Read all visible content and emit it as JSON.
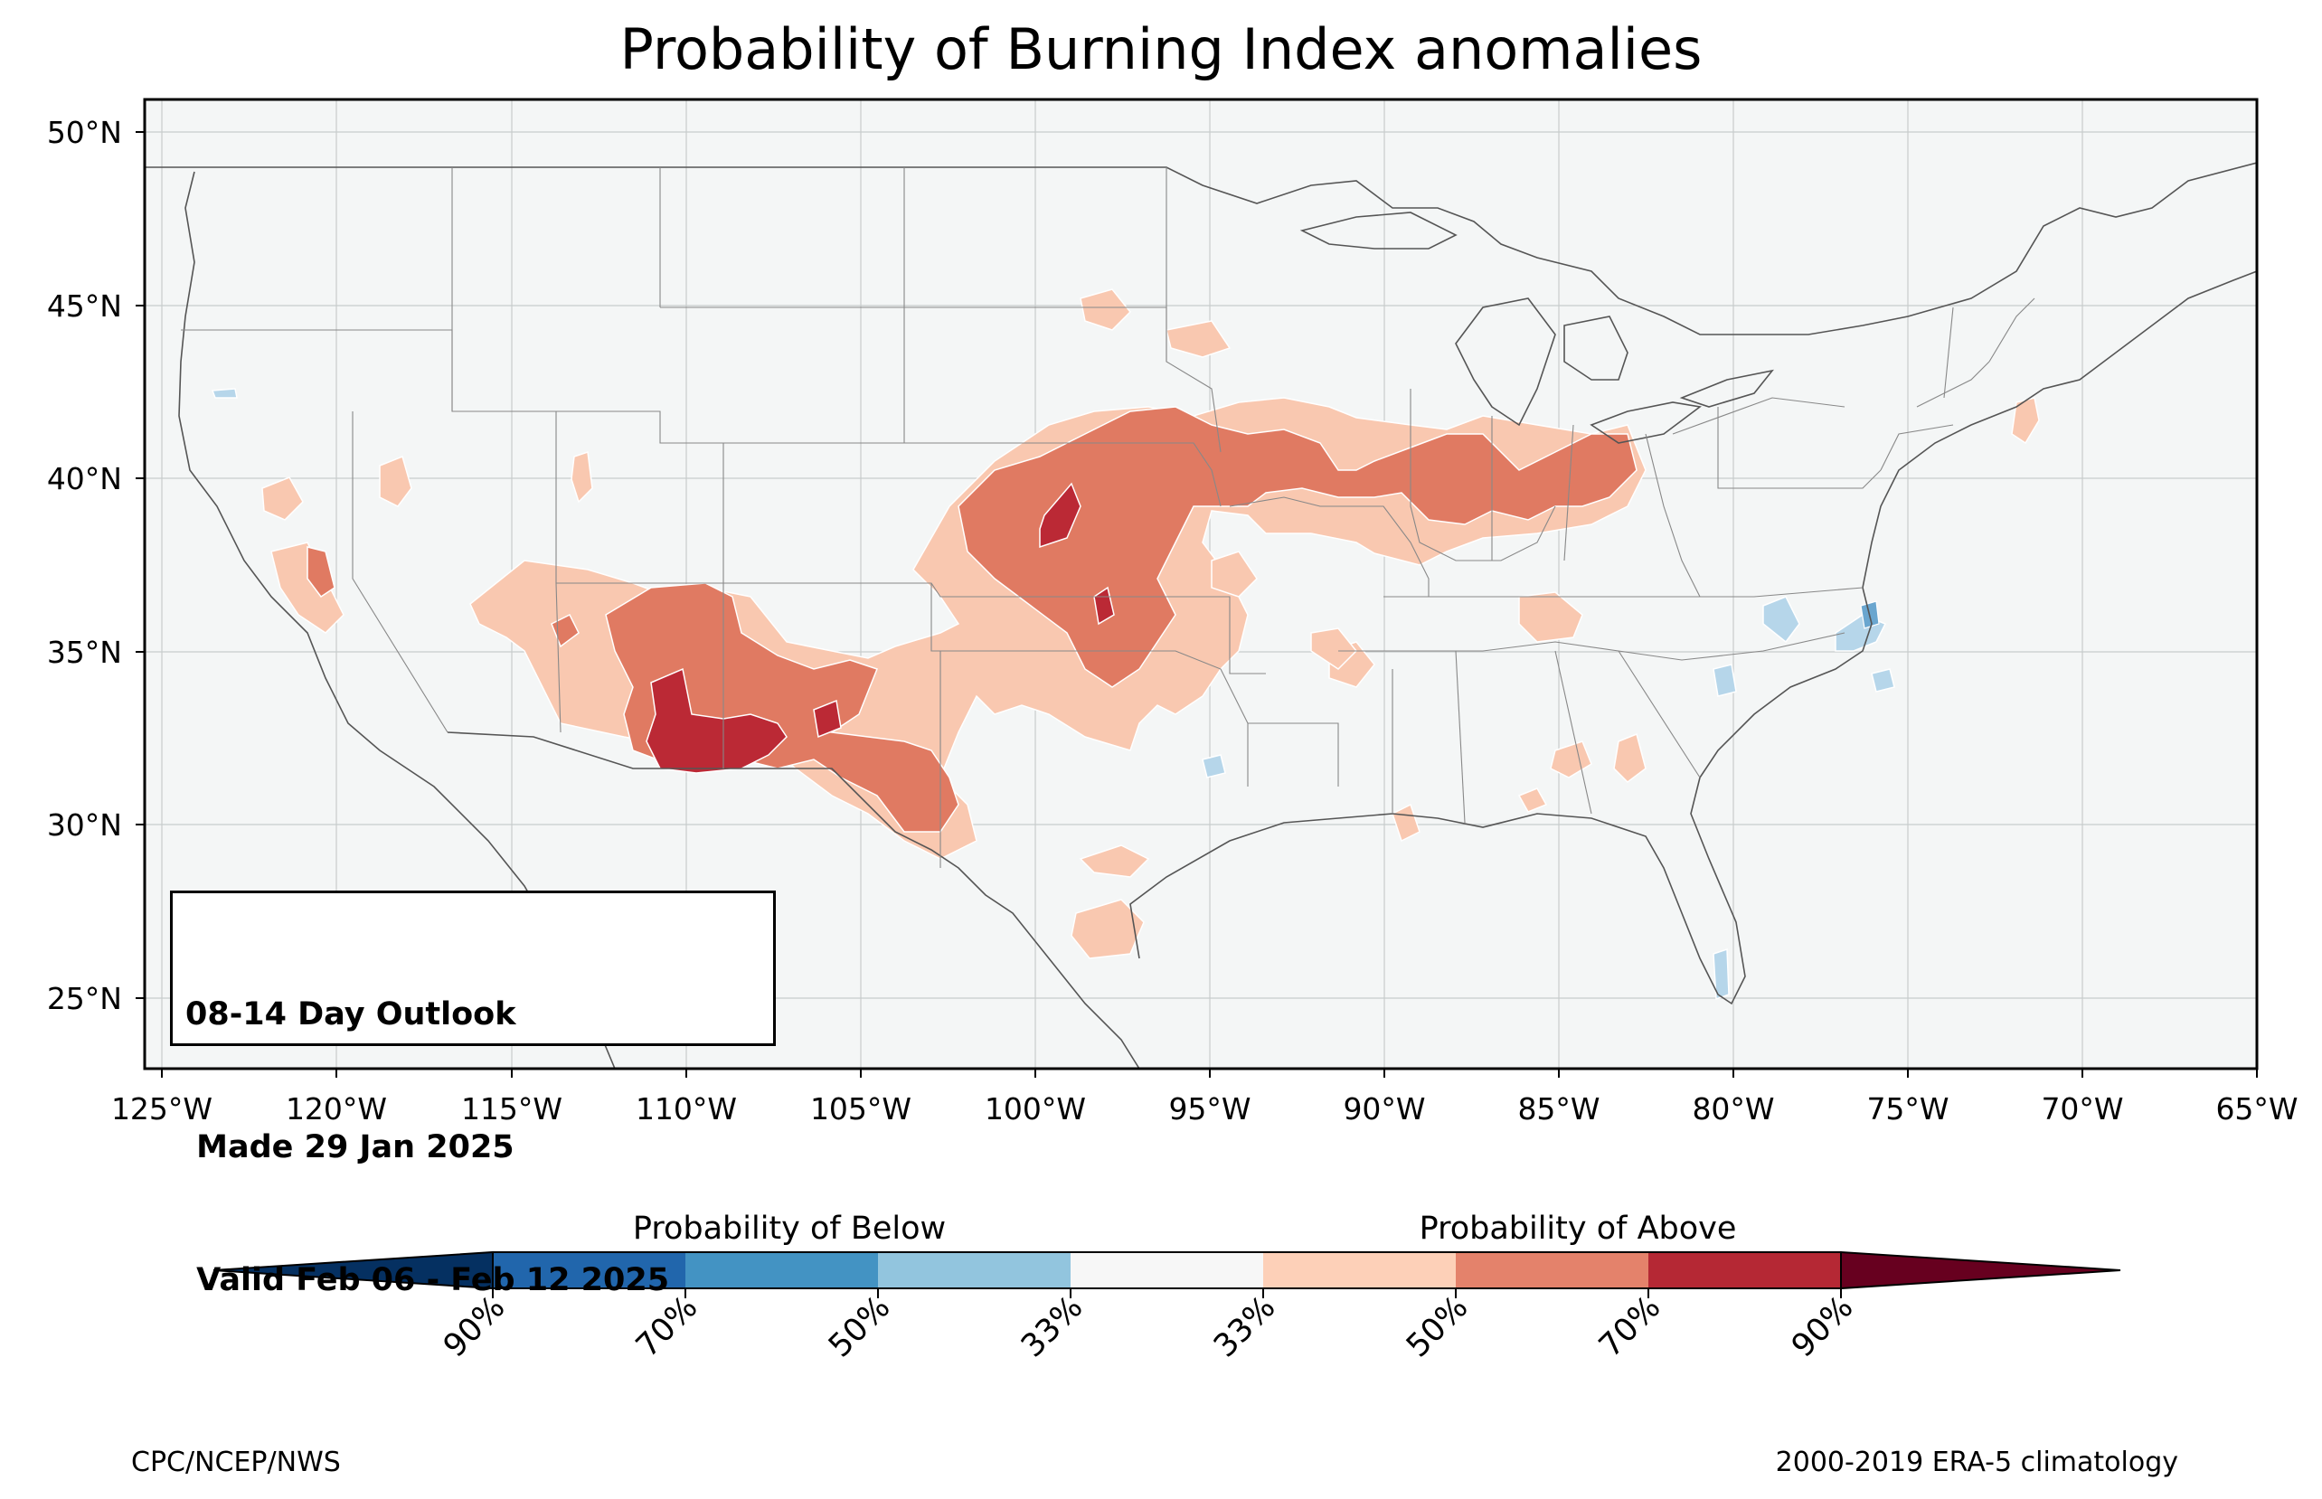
{
  "title": "Probability of Burning Index anomalies",
  "outlook": {
    "line1": "08-14 Day Outlook",
    "line2": " Made 29 Jan 2025",
    "line3": " Valid Feb 06 - Feb 12 2025"
  },
  "credits": {
    "left": "CPC/NCEP/NWS",
    "right": "2000-2019 ERA-5 climatology"
  },
  "map": {
    "lat_labels": [
      "50°N",
      "45°N",
      "40°N",
      "35°N",
      "30°N",
      "25°N"
    ],
    "lon_labels": [
      "125°W",
      "120°W",
      "115°W",
      "110°W",
      "105°W",
      "100°W",
      "95°W",
      "90°W",
      "85°W",
      "80°W",
      "75°W",
      "70°W",
      "65°W"
    ],
    "lon_range": [
      -125.5,
      -65
    ],
    "lat_range": [
      22.8,
      50.9
    ],
    "ocean_color": "#f4f6f6"
  },
  "colorbar": {
    "below_label": "Probability of Below",
    "above_label": "Probability of Above",
    "colors": [
      "#053061",
      "#2166ac",
      "#4393c3",
      "#92c5de",
      "#d1e5f0",
      "#f7f7f7",
      "#fddbc7",
      "#f4a582",
      "#d6604d",
      "#b2182b",
      "#67001f"
    ],
    "ticks": [
      "90%",
      "70%",
      "50%",
      "33%",
      "33%",
      "50%",
      "70%",
      "90%"
    ]
  },
  "legend_colors": {
    "above_33": "#f9c8b0",
    "above_50": "#e07a62",
    "above_70": "#bb2935",
    "below_33": "#b6d6ea"
  }
}
